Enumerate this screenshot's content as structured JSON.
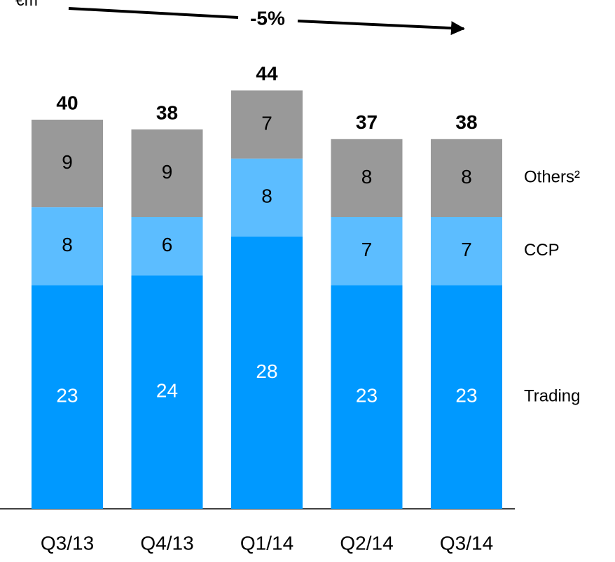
{
  "chart_data": {
    "type": "bar",
    "stacked": true,
    "unit_label": "€m",
    "annotation": "-5%",
    "categories": [
      "Q3/13",
      "Q4/13",
      "Q1/14",
      "Q2/14",
      "Q3/14"
    ],
    "series": [
      {
        "name": "Trading",
        "color": "#0099ff",
        "label_color": "#ffffff",
        "values": [
          23,
          24,
          28,
          23,
          23
        ]
      },
      {
        "name": "CCP",
        "color": "#5cbdff",
        "label_color": "#000000",
        "values": [
          8,
          6,
          8,
          7,
          7
        ]
      },
      {
        "name": "Others²",
        "color": "#999999",
        "label_color": "#000000",
        "values": [
          9,
          9,
          7,
          8,
          8
        ]
      }
    ],
    "totals": [
      40,
      38,
      44,
      37,
      38
    ]
  }
}
